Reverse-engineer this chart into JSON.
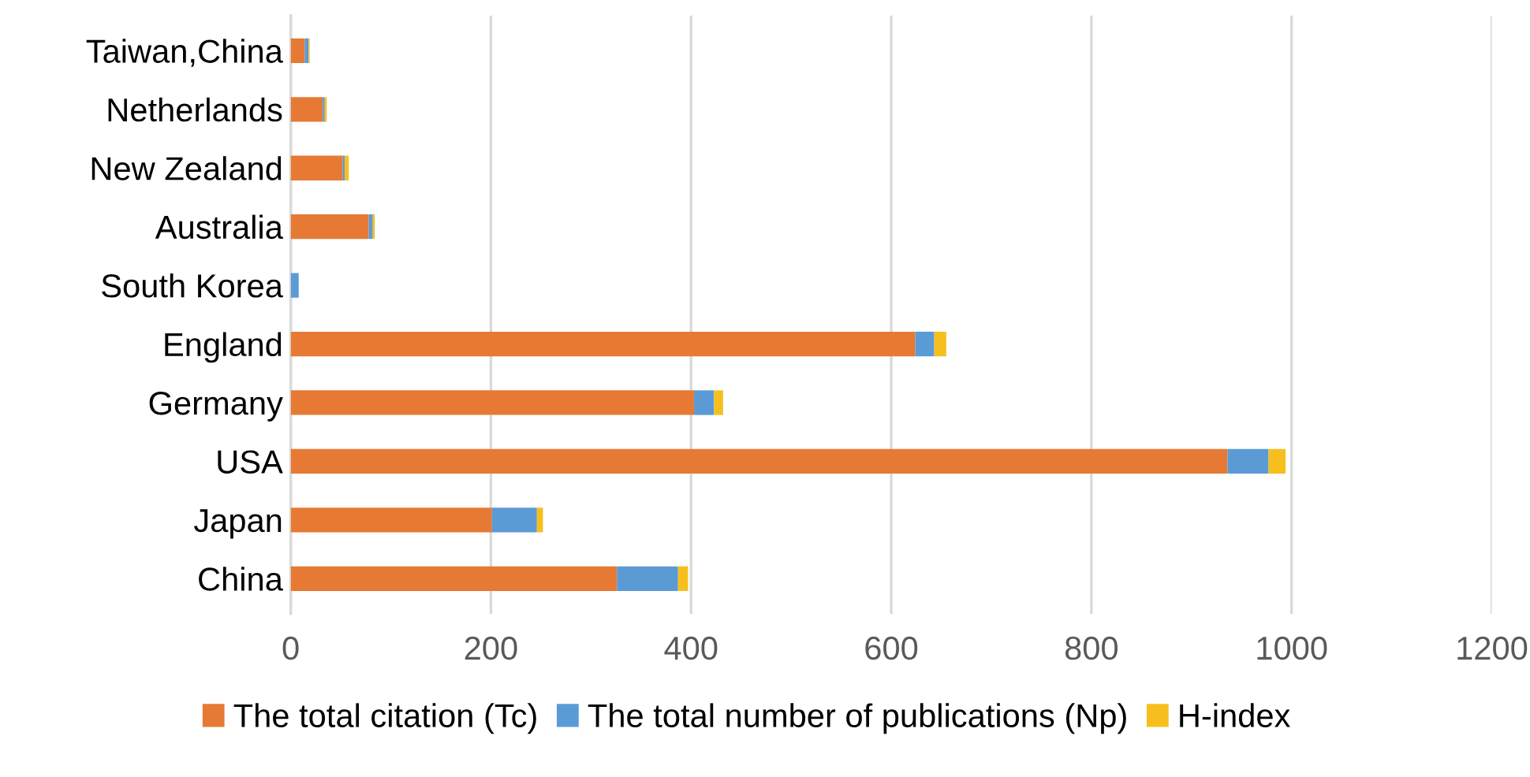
{
  "chart_data": {
    "type": "bar",
    "orientation": "horizontal",
    "stacked": true,
    "categories": [
      "Taiwan,China",
      "Netherlands",
      "New Zealand",
      "Australia",
      "South Korea",
      "England",
      "Germany",
      "USA",
      "Japan",
      "China"
    ],
    "series": [
      {
        "name": "The total citation (Tc)",
        "color": "#e67a34",
        "values": [
          14,
          32,
          52,
          78,
          0,
          624,
          403,
          936,
          201,
          326
        ]
      },
      {
        "name": "The total number of publications (Np)",
        "color": "#5b9bd5",
        "values": [
          4,
          2,
          2,
          4,
          8,
          19,
          20,
          41,
          45,
          61
        ]
      },
      {
        "name": "H-index",
        "color": "#f7bf1e",
        "values": [
          1,
          2,
          4,
          2,
          0,
          12,
          9,
          17,
          6,
          10
        ]
      }
    ],
    "xlim": [
      0,
      1200
    ],
    "xticks": [
      0,
      200,
      400,
      600,
      800,
      1000,
      1200
    ],
    "grid": "x",
    "legend": "bottom"
  }
}
